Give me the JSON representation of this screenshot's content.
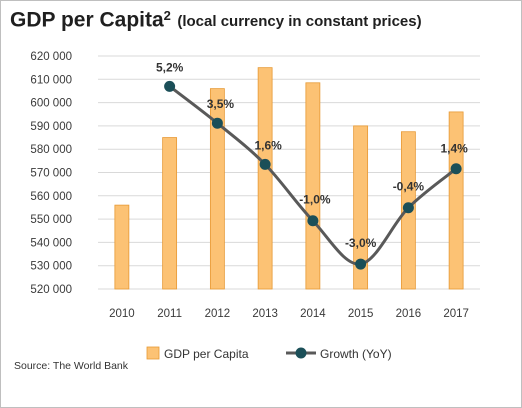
{
  "title": {
    "main": "GDP per Capita",
    "sup": "2",
    "sub": "(local currency in constant prices)"
  },
  "source": "Source: The World Bank",
  "colors": {
    "bar_fill": "#fcc274",
    "bar_stroke": "#e79a35",
    "line": "#595959",
    "marker": "#1b4f58",
    "grid": "#d9d9d9"
  },
  "chart_data": {
    "type": "bar+line",
    "categories": [
      "2010",
      "2011",
      "2012",
      "2013",
      "2014",
      "2015",
      "2016",
      "2017"
    ],
    "series": [
      {
        "name": "GDP per Capita",
        "type": "bar",
        "values": [
          556000,
          585000,
          606000,
          615000,
          608500,
          590000,
          587500,
          596000
        ]
      },
      {
        "name": "Growth (YoY)",
        "type": "line",
        "values": [
          null,
          5.2,
          3.5,
          1.6,
          -1.0,
          -3.0,
          -0.4,
          1.4
        ],
        "labels": [
          "",
          "5,2%",
          "3,5%",
          "1,6%",
          "-1,0%",
          "-3,0%",
          "-0,4%",
          "1,4%"
        ]
      }
    ],
    "y_ticks": [
      "520 000",
      "530 000",
      "540 000",
      "550 000",
      "560 000",
      "570 000",
      "580 000",
      "590 000",
      "600 000",
      "610 000",
      "620 000"
    ],
    "ylim": [
      520000,
      620000
    ],
    "y2lim": [
      -4.15,
      6.6
    ],
    "grid": true,
    "legend": "bottom"
  }
}
